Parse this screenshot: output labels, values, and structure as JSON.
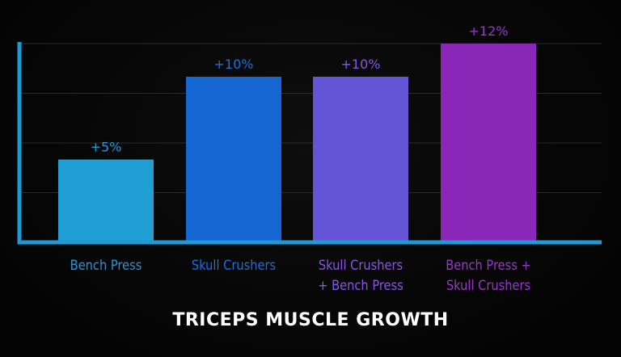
{
  "chart_data": {
    "type": "bar",
    "title": "TRICEPS MUSCLE GROWTH",
    "xlabel": "",
    "ylabel": "",
    "ylim": [
      0,
      12
    ],
    "grid": true,
    "legend": "none",
    "categories": [
      [
        "Bench Press"
      ],
      [
        "Skull Crushers"
      ],
      [
        "Skull Crushers",
        "+ Bench Press"
      ],
      [
        "Bench Press +",
        "Skull Crushers"
      ]
    ],
    "values": [
      5,
      10,
      10,
      12
    ],
    "value_labels": [
      "+5%",
      "+10%",
      "+10%",
      "+12%"
    ],
    "colors": {
      "bars": [
        "#1f9fd3",
        "#1467d3",
        "#6455d6",
        "#8a27b8"
      ],
      "labels": [
        "#2a95d6",
        "#1a6fe0",
        "#8a55e6",
        "#9a36c8"
      ],
      "axis": "#1e9ad6",
      "grid": "#2a2a2a",
      "title": "#ffffff"
    }
  }
}
